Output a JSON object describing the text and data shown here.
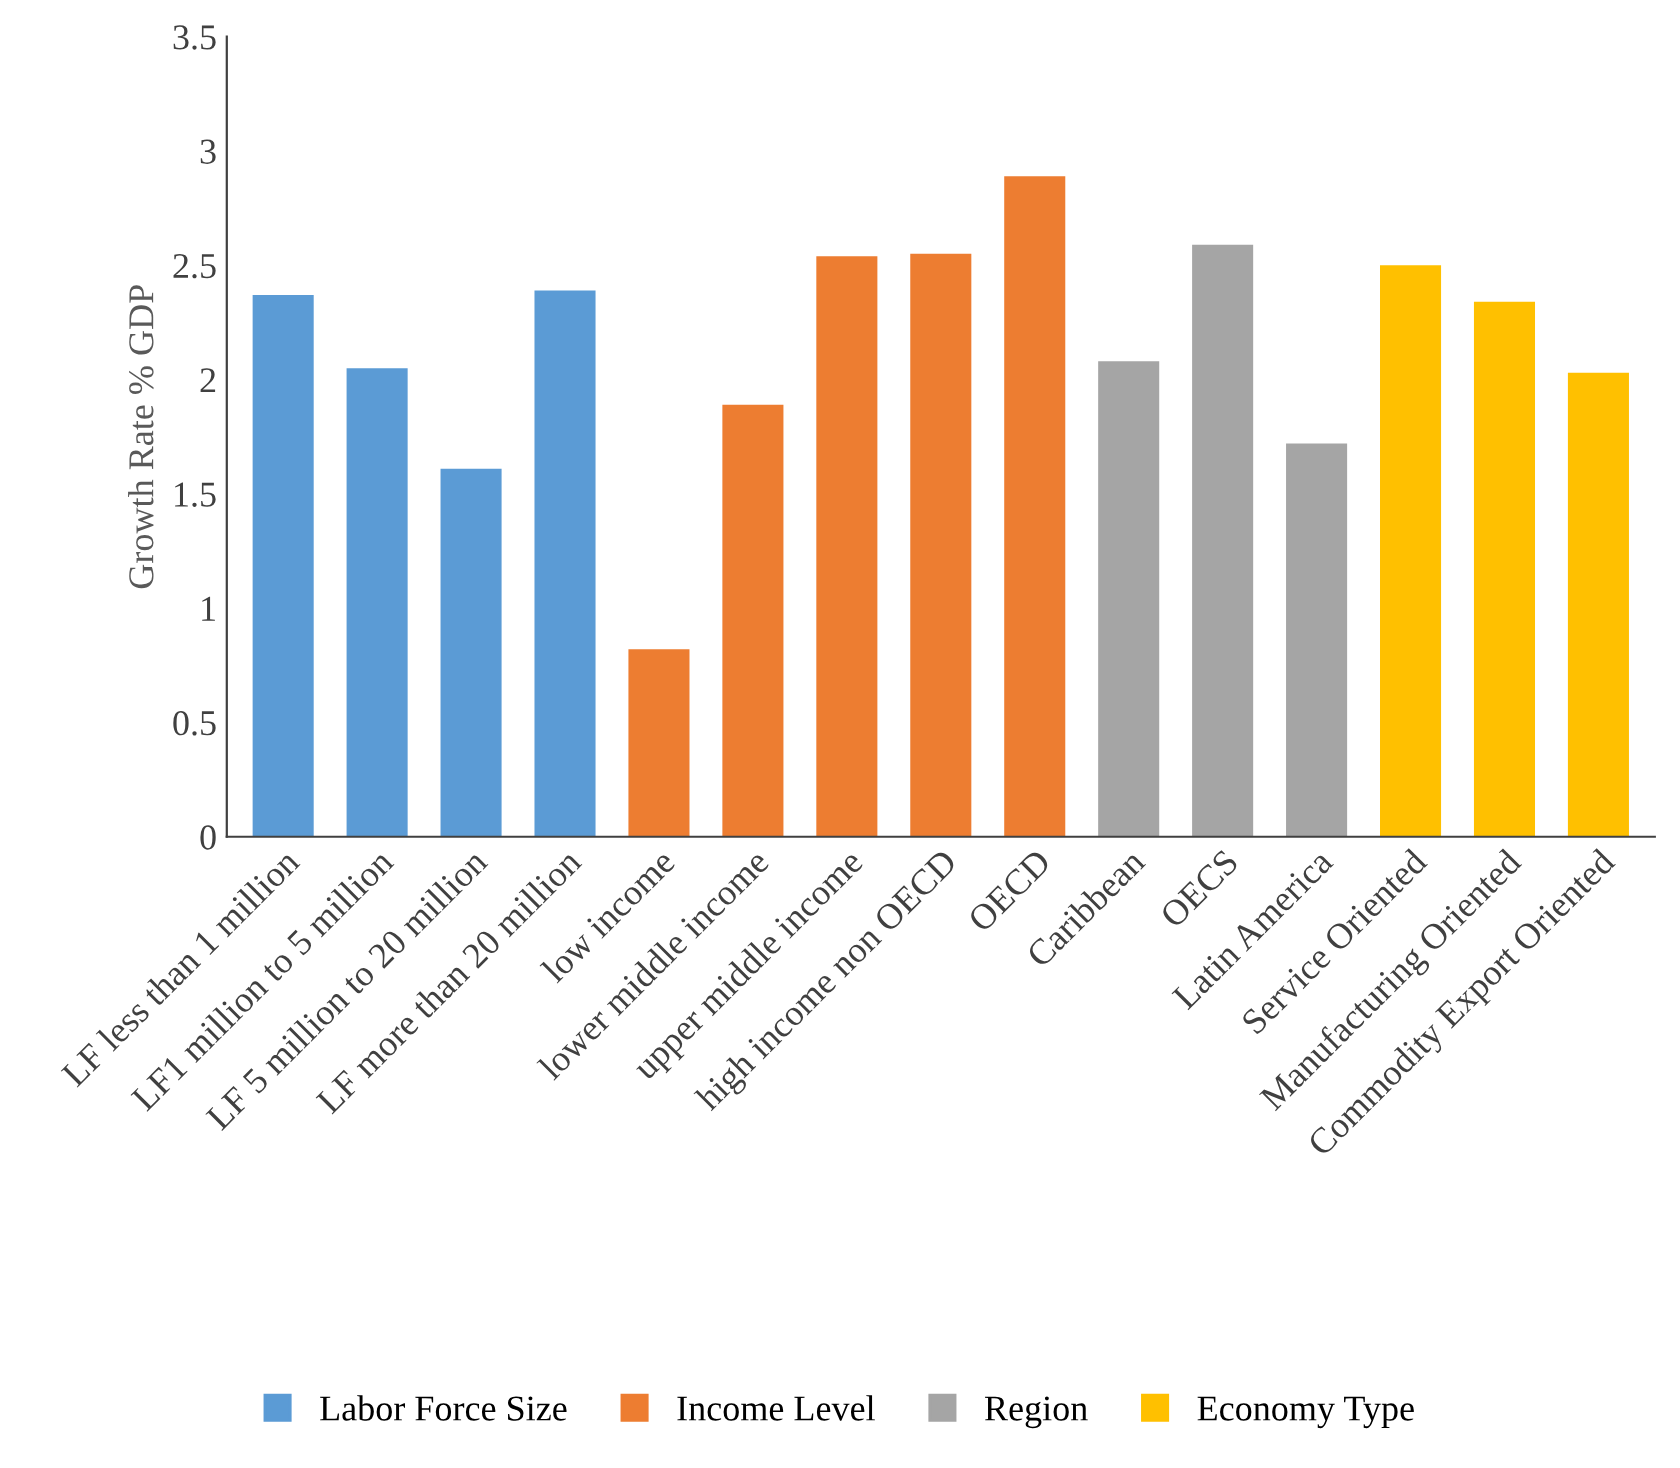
{
  "chart_data": {
    "type": "bar",
    "ylabel": "Growth Rate % GDP",
    "categories": [
      "LF less than 1 million",
      "LF1 million to 5 million",
      "LF 5 million to 20 million",
      "LF more than 20 million",
      "low income",
      "lower middle income",
      "upper middle income",
      "high income non OECD",
      "OECD",
      "Caribbean",
      "OECS",
      "Latin America",
      "Service Oriented",
      "Manufacturing Oriented",
      "Commodity Export Oriented"
    ],
    "series": [
      {
        "name": "Labor Force Size",
        "color": "#5b9bd5",
        "values": [
          2.37,
          2.05,
          1.61,
          2.39,
          null,
          null,
          null,
          null,
          null,
          null,
          null,
          null,
          null,
          null,
          null
        ]
      },
      {
        "name": "Income Level",
        "color": "#ed7d31",
        "values": [
          null,
          null,
          null,
          null,
          0.82,
          1.89,
          2.54,
          2.55,
          2.89,
          null,
          null,
          null,
          null,
          null,
          null
        ]
      },
      {
        "name": "Region",
        "color": "#a5a5a5",
        "values": [
          null,
          null,
          null,
          null,
          null,
          null,
          null,
          null,
          null,
          2.08,
          2.59,
          1.72,
          null,
          null,
          null
        ]
      },
      {
        "name": "Economy Type",
        "color": "#ffc000",
        "values": [
          null,
          null,
          null,
          null,
          null,
          null,
          null,
          null,
          null,
          null,
          null,
          null,
          2.5,
          2.34,
          2.03
        ]
      }
    ],
    "ylim": [
      0,
      3.5
    ],
    "yticks": [
      0,
      0.5,
      1,
      1.5,
      2,
      2.5,
      3,
      3.5
    ],
    "grid": false,
    "legend": "bottom"
  }
}
